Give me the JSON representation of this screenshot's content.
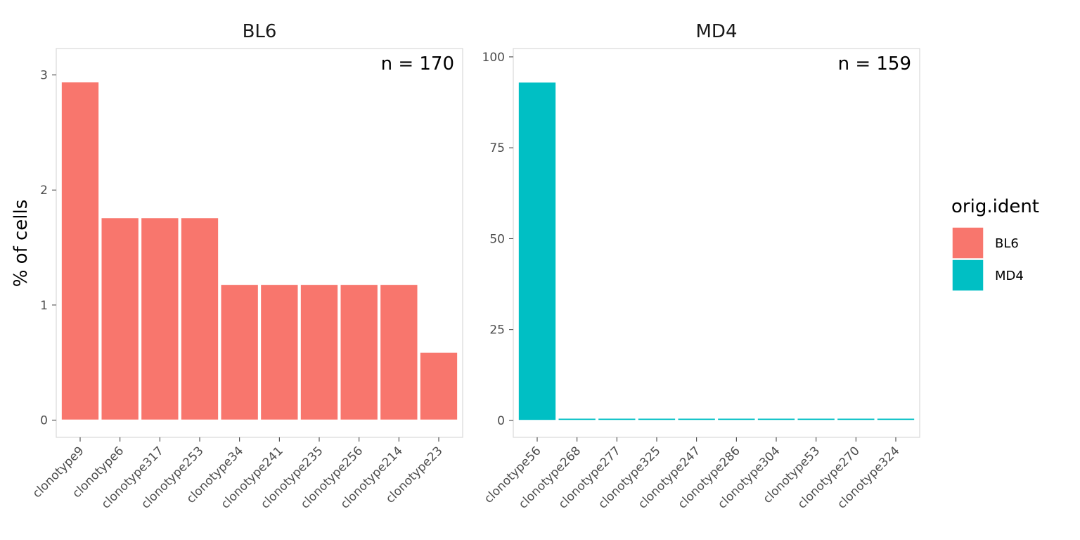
{
  "chart_data": {
    "type": "bar",
    "ylabel": "% of cells",
    "legend": {
      "title": "orig.ident",
      "placement": "right",
      "entries": [
        {
          "label": "BL6",
          "color": "#F8766D"
        },
        {
          "label": "MD4",
          "color": "#00BFC4"
        }
      ]
    },
    "grid": false,
    "panels": [
      {
        "title": "BL6",
        "annotation": "n = 170",
        "color": "#F8766D",
        "categories": [
          "clonotype9",
          "clonotype6",
          "clonotype317",
          "clonotype253",
          "clonotype34",
          "clonotype241",
          "clonotype235",
          "clonotype256",
          "clonotype214",
          "clonotype23"
        ],
        "values": [
          2.94,
          1.76,
          1.76,
          1.76,
          1.18,
          1.18,
          1.18,
          1.18,
          1.18,
          0.59
        ],
        "ylim": [
          -0.15,
          3.23
        ],
        "yticks": [
          0,
          1,
          2,
          3
        ],
        "ytick_labels": [
          "0",
          "1",
          "2",
          "3"
        ]
      },
      {
        "title": "MD4",
        "annotation": "n = 159",
        "color": "#00BFC4",
        "categories": [
          "clonotype56",
          "clonotype268",
          "clonotype277",
          "clonotype325",
          "clonotype247",
          "clonotype286",
          "clonotype304",
          "clonotype53",
          "clonotype270",
          "clonotype324"
        ],
        "values": [
          93.08,
          0.63,
          0.63,
          0.63,
          0.63,
          0.63,
          0.63,
          0.63,
          0.63,
          0.63
        ],
        "ylim": [
          -4.65,
          102.3
        ],
        "yticks": [
          0,
          25,
          50,
          75,
          100
        ],
        "ytick_labels": [
          "0",
          "25",
          "50",
          "75",
          "100"
        ]
      }
    ]
  }
}
